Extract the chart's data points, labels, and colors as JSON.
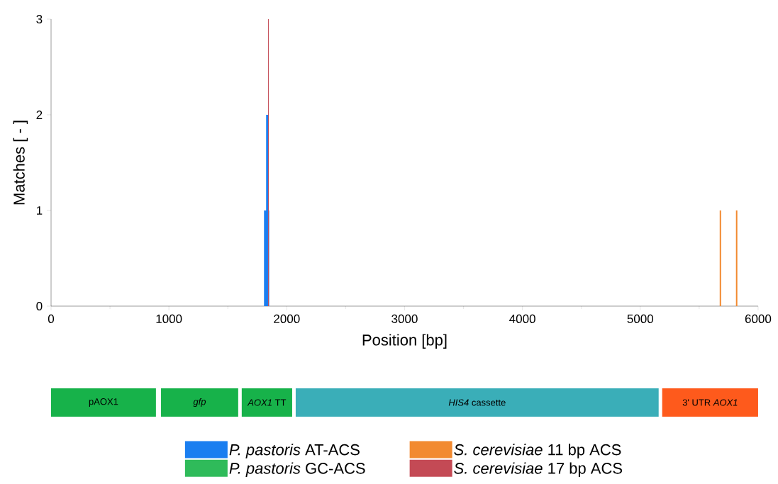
{
  "chart_data": [
    {
      "type": "bar",
      "xlabel": "Position [bp]",
      "ylabel": "Matches [ - ]",
      "xlim": [
        0,
        6000
      ],
      "ylim": [
        0,
        3
      ],
      "xticks": [
        0,
        1000,
        2000,
        3000,
        4000,
        5000,
        6000
      ],
      "yticks": [
        0,
        1,
        2,
        3
      ],
      "series": [
        {
          "name": "*P. pastoris* AT-ACS",
          "color": "#1a7ef0",
          "x": [
            1829,
            1836
          ],
          "values": [
            1,
            2
          ]
        },
        {
          "name": "*P. pastoris* GC-ACS",
          "color": "#2fbb5a"
        },
        {
          "name": "*S. cerevisiae* 11 bp ACS",
          "color": "#f28a30",
          "x": [
            5680,
            5818
          ],
          "values": [
            1,
            1
          ]
        },
        {
          "name": "*S. cerevisiae* 17 bp ACS",
          "color": "#c44a55",
          "x": [
            1845
          ],
          "values": [
            3
          ]
        }
      ],
      "legend": "bottom"
    },
    {
      "type": "bar",
      "orientation": "horizontal",
      "categories": [
        null
      ],
      "xlim": [
        0,
        6000
      ],
      "tick_labels": false,
      "series": [
        {
          "name": "pAOX1",
          "color": "#17b24a",
          "base": [
            0
          ],
          "values": [
            890
          ]
        },
        {
          "name": "*gfp*",
          "color": "#17b24a",
          "base": [
            933
          ],
          "values": [
            655
          ]
        },
        {
          "name": "*AOX1* TT",
          "color": "#17b24a",
          "base": [
            1618
          ],
          "values": [
            428
          ]
        },
        {
          "name": "*HIS4* cassette",
          "color": "#3aaeb8",
          "base": [
            2076
          ],
          "values": [
            3080
          ]
        },
        {
          "name": "3' UTR *AOX1*",
          "color": "#fe5a1c",
          "base": [
            5186
          ],
          "values": [
            814
          ]
        }
      ]
    }
  ]
}
